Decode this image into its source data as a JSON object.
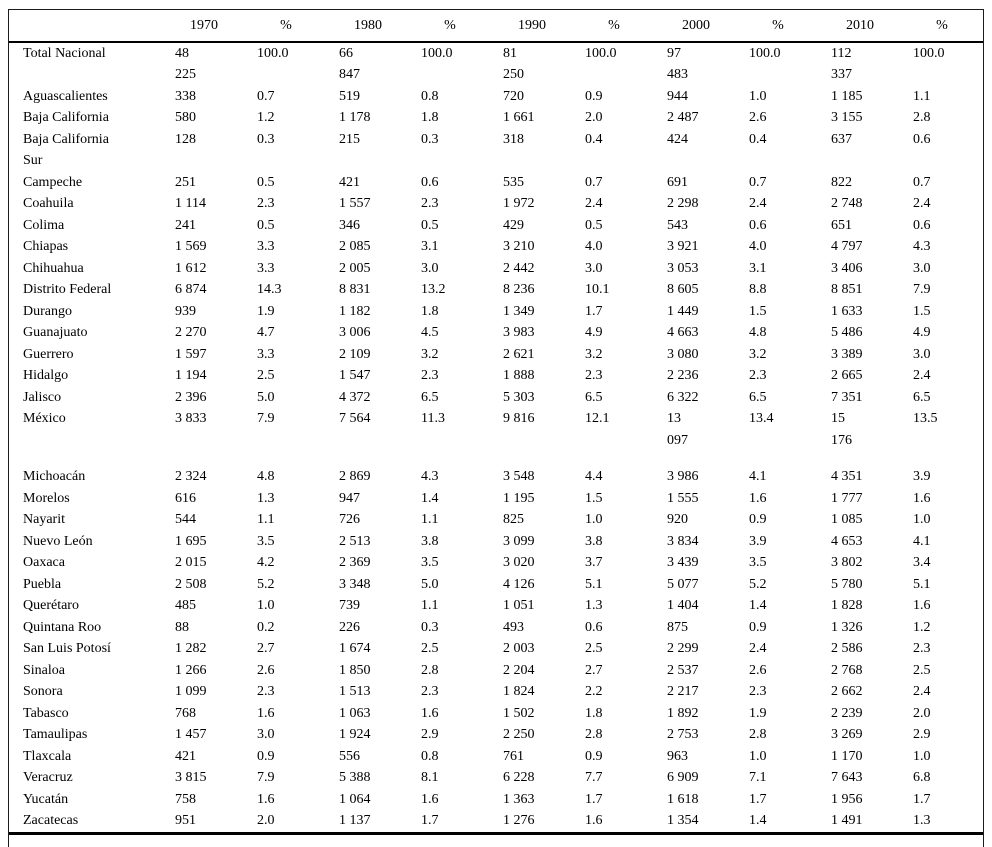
{
  "table": {
    "columns": [
      "",
      "1970",
      "%",
      "1980",
      "%",
      "1990",
      "%",
      "2000",
      "%",
      "2010",
      "%"
    ],
    "rows": [
      {
        "label": "Total Nacional",
        "cells": [
          "48\n225",
          "100.0",
          "66\n847",
          "100.0",
          "81\n250",
          "100.0",
          "97\n483",
          "100.0",
          "112\n337",
          "100.0"
        ]
      },
      {
        "label": "Aguascalientes",
        "cells": [
          "338",
          "0.7",
          "519",
          "0.8",
          "720",
          "0.9",
          "944",
          "1.0",
          "1 185",
          "1.1"
        ]
      },
      {
        "label": "Baja California",
        "cells": [
          "580",
          "1.2",
          "1 178",
          "1.8",
          "1 661",
          "2.0",
          "2 487",
          "2.6",
          "3 155",
          "2.8"
        ]
      },
      {
        "label": "Baja California\nSur",
        "cells": [
          "128",
          "0.3",
          "215",
          "0.3",
          "318",
          "0.4",
          "424",
          "0.4",
          "637",
          "0.6"
        ]
      },
      {
        "label": "Campeche",
        "cells": [
          "251",
          "0.5",
          "421",
          "0.6",
          "535",
          "0.7",
          "691",
          "0.7",
          "822",
          "0.7"
        ]
      },
      {
        "label": "Coahuila",
        "cells": [
          "1 114",
          "2.3",
          "1 557",
          "2.3",
          "1 972",
          "2.4",
          "2 298",
          "2.4",
          "2 748",
          "2.4"
        ]
      },
      {
        "label": "Colima",
        "cells": [
          "241",
          "0.5",
          "346",
          "0.5",
          "429",
          "0.5",
          "543",
          "0.6",
          "651",
          "0.6"
        ]
      },
      {
        "label": "Chiapas",
        "cells": [
          "1 569",
          "3.3",
          "2 085",
          "3.1",
          "3 210",
          "4.0",
          "3 921",
          "4.0",
          "4 797",
          "4.3"
        ]
      },
      {
        "label": "Chihuahua",
        "cells": [
          "1 612",
          "3.3",
          "2 005",
          "3.0",
          "2 442",
          "3.0",
          "3 053",
          "3.1",
          "3 406",
          "3.0"
        ]
      },
      {
        "label": "Distrito Federal",
        "cells": [
          "6 874",
          "14.3",
          "8 831",
          "13.2",
          "8 236",
          "10.1",
          "8 605",
          "8.8",
          "8 851",
          "7.9"
        ]
      },
      {
        "label": "Durango",
        "cells": [
          "939",
          "1.9",
          "1 182",
          "1.8",
          "1 349",
          "1.7",
          "1 449",
          "1.5",
          "1 633",
          "1.5"
        ]
      },
      {
        "label": "Guanajuato",
        "cells": [
          "2 270",
          "4.7",
          "3 006",
          "4.5",
          "3 983",
          "4.9",
          "4 663",
          "4.8",
          "5 486",
          "4.9"
        ]
      },
      {
        "label": "Guerrero",
        "cells": [
          "1 597",
          "3.3",
          "2 109",
          "3.2",
          "2 621",
          "3.2",
          "3 080",
          "3.2",
          "3 389",
          "3.0"
        ]
      },
      {
        "label": "Hidalgo",
        "cells": [
          "1 194",
          "2.5",
          "1 547",
          "2.3",
          "1 888",
          "2.3",
          "2 236",
          "2.3",
          "2 665",
          "2.4"
        ]
      },
      {
        "label": "Jalisco",
        "cells": [
          "2 396",
          "5.0",
          "4 372",
          "6.5",
          "5 303",
          "6.5",
          "6 322",
          "6.5",
          "7 351",
          "6.5"
        ]
      },
      {
        "label": "México",
        "spacer_after": true,
        "cells": [
          "3 833",
          "7.9",
          "7 564",
          "11.3",
          "9 816",
          "12.1",
          "13\n097",
          "13.4",
          "15\n176",
          "13.5"
        ]
      },
      {
        "label": "Michoacán",
        "cells": [
          "2 324",
          "4.8",
          "2 869",
          "4.3",
          "3 548",
          "4.4",
          "3 986",
          "4.1",
          "4 351",
          "3.9"
        ]
      },
      {
        "label": "Morelos",
        "cells": [
          "616",
          "1.3",
          "947",
          "1.4",
          "1 195",
          "1.5",
          "1 555",
          "1.6",
          "1 777",
          "1.6"
        ]
      },
      {
        "label": "Nayarit",
        "cells": [
          "544",
          "1.1",
          "726",
          "1.1",
          "825",
          "1.0",
          "920",
          "0.9",
          "1 085",
          "1.0"
        ]
      },
      {
        "label": "Nuevo León",
        "cells": [
          "1 695",
          "3.5",
          "2 513",
          "3.8",
          "3 099",
          "3.8",
          "3 834",
          "3.9",
          "4 653",
          "4.1"
        ]
      },
      {
        "label": "Oaxaca",
        "cells": [
          "2 015",
          "4.2",
          "2 369",
          "3.5",
          "3 020",
          "3.7",
          "3 439",
          "3.5",
          "3 802",
          "3.4"
        ]
      },
      {
        "label": "Puebla",
        "cells": [
          "2 508",
          "5.2",
          "3 348",
          "5.0",
          "4 126",
          "5.1",
          "5 077",
          "5.2",
          "5 780",
          "5.1"
        ]
      },
      {
        "label": "Querétaro",
        "cells": [
          "485",
          "1.0",
          "739",
          "1.1",
          "1 051",
          "1.3",
          "1 404",
          "1.4",
          "1 828",
          "1.6"
        ]
      },
      {
        "label": "Quintana Roo",
        "cells": [
          "88",
          "0.2",
          "226",
          "0.3",
          "493",
          "0.6",
          "875",
          "0.9",
          "1 326",
          "1.2"
        ]
      },
      {
        "label": "San Luis Potosí",
        "cells": [
          "1 282",
          "2.7",
          "1 674",
          "2.5",
          "2 003",
          "2.5",
          "2 299",
          "2.4",
          "2 586",
          "2.3"
        ]
      },
      {
        "label": "Sinaloa",
        "cells": [
          "1 266",
          "2.6",
          "1 850",
          "2.8",
          "2 204",
          "2.7",
          "2 537",
          "2.6",
          "2 768",
          "2.5"
        ]
      },
      {
        "label": "Sonora",
        "cells": [
          "1 099",
          "2.3",
          "1 513",
          "2.3",
          "1 824",
          "2.2",
          "2 217",
          "2.3",
          "2 662",
          "2.4"
        ]
      },
      {
        "label": "Tabasco",
        "cells": [
          "768",
          "1.6",
          "1 063",
          "1.6",
          "1 502",
          "1.8",
          "1 892",
          "1.9",
          "2 239",
          "2.0"
        ]
      },
      {
        "label": "Tamaulipas",
        "cells": [
          "1 457",
          "3.0",
          "1 924",
          "2.9",
          "2 250",
          "2.8",
          "2 753",
          "2.8",
          "3 269",
          "2.9"
        ]
      },
      {
        "label": "Tlaxcala",
        "cells": [
          "421",
          "0.9",
          "556",
          "0.8",
          "761",
          "0.9",
          "963",
          "1.0",
          "1 170",
          "1.0"
        ]
      },
      {
        "label": "Veracruz",
        "cells": [
          "3 815",
          "7.9",
          "5 388",
          "8.1",
          "6 228",
          "7.7",
          "6 909",
          "7.1",
          "7 643",
          "6.8"
        ]
      },
      {
        "label": "Yucatán",
        "cells": [
          "758",
          "1.6",
          "1 064",
          "1.6",
          "1 363",
          "1.7",
          "1 618",
          "1.7",
          "1 956",
          "1.7"
        ]
      },
      {
        "label": "Zacatecas",
        "cells": [
          "951",
          "2.0",
          "1 137",
          "1.7",
          "1 276",
          "1.6",
          "1 354",
          "1.4",
          "1 491",
          "1.3"
        ]
      }
    ]
  }
}
